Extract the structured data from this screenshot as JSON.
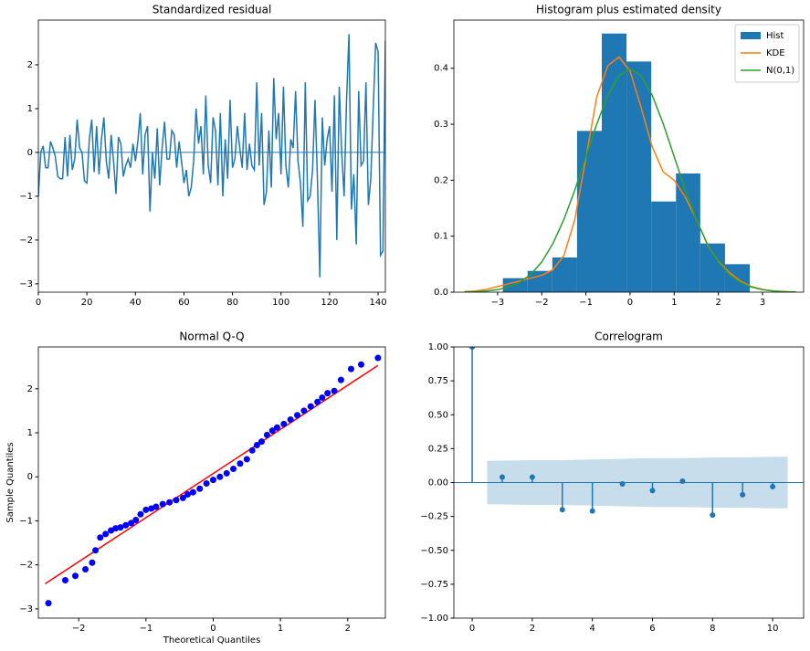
{
  "chart_data": [
    {
      "type": "line",
      "title": "Standardized residual",
      "color": "#1f77b4",
      "hline": 0,
      "values": [
        -1.0,
        0.0,
        0.15,
        -0.35,
        -0.35,
        0.25,
        0.1,
        -0.1,
        -0.55,
        -0.6,
        -0.6,
        0.35,
        -0.55,
        0.4,
        -0.4,
        -0.15,
        0.75,
        0.1,
        0.0,
        -0.65,
        -0.7,
        0.3,
        0.75,
        -0.45,
        0.6,
        -0.5,
        0.3,
        0.8,
        -0.2,
        -0.6,
        0.4,
        -0.2,
        -0.95,
        0.35,
        0.2,
        -0.55,
        -0.3,
        -0.15,
        -0.35,
        0.2,
        -0.2,
        0.25,
        0.9,
        -0.5,
        0.4,
        0.6,
        -1.35,
        0.0,
        -0.6,
        0.55,
        -0.75,
        0.1,
        0.7,
        -0.15,
        -0.15,
        0.5,
        0.4,
        -0.35,
        0.25,
        -0.2,
        -0.7,
        -0.4,
        -1.0,
        -0.8,
        -0.2,
        1.0,
        0.2,
        0.6,
        -0.5,
        1.3,
        -0.3,
        -0.7,
        0.8,
        0.5,
        -0.75,
        0.9,
        -1.0,
        0.3,
        -0.6,
        1.2,
        -0.35,
        -0.15,
        0.6,
        0.1,
        -0.35,
        0.9,
        -0.4,
        0.2,
        -0.3,
        -0.4,
        1.6,
        -0.3,
        0.9,
        -1.2,
        -0.9,
        0.5,
        -0.8,
        1.7,
        0.3,
        0.9,
        -0.5,
        1.5,
        -0.3,
        -0.8,
        0.3,
        0.1,
        1.4,
        -0.2,
        -0.7,
        -1.7,
        1.6,
        -1.1,
        -1.0,
        -0.4,
        1.2,
        -0.6,
        -2.85,
        0.8,
        -0.3,
        0.3,
        0.6,
        -0.9,
        1.3,
        -2.0,
        1.5,
        0.0,
        -1.0,
        1.2,
        2.7,
        -1.3,
        -0.5,
        -2.1,
        1.4,
        -0.3,
        -0.2,
        1.6,
        -1.2,
        -0.6,
        1.0,
        2.5,
        2.3,
        -2.35,
        -2.25,
        2.55
      ],
      "xlim": [
        0,
        143
      ],
      "xticks": [
        0,
        20,
        40,
        60,
        80,
        100,
        120,
        140
      ],
      "ylim": [
        -3.19,
        3.02
      ],
      "yticks": [
        {
          "value": -3,
          "label": "−3"
        },
        {
          "value": -2,
          "label": "−2"
        },
        {
          "value": -1,
          "label": "−1"
        },
        0,
        1,
        2
      ]
    },
    {
      "type": "histogram",
      "title": "Histogram plus estimated density",
      "legend": "upper right",
      "hist": {
        "name": "Hist",
        "color": "#1f77b4",
        "bins": [
          -2.88,
          -2.32,
          -1.76,
          -1.2,
          -0.64,
          -0.08,
          0.48,
          1.04,
          1.59,
          2.15,
          2.71
        ],
        "counts": [
          0.025,
          0.038,
          0.062,
          0.288,
          0.462,
          0.412,
          0.162,
          0.212,
          0.087,
          0.05
        ]
      },
      "series": [
        {
          "name": "KDE",
          "color": "#ff7f0e",
          "x": [
            -3.75,
            -3.5,
            -3.25,
            -3,
            -2.75,
            -2.5,
            -2.25,
            -2,
            -1.75,
            -1.5,
            -1.25,
            -1,
            -0.75,
            -0.5,
            -0.25,
            0,
            0.25,
            0.5,
            0.75,
            1,
            1.25,
            1.5,
            1.75,
            2,
            2.25,
            2.5,
            2.75,
            3,
            3.25,
            3.5,
            3.75
          ],
          "values": [
            0.001,
            0.002,
            0.005,
            0.01,
            0.015,
            0.02,
            0.025,
            0.03,
            0.04,
            0.065,
            0.13,
            0.24,
            0.35,
            0.405,
            0.42,
            0.395,
            0.33,
            0.26,
            0.215,
            0.2,
            0.17,
            0.13,
            0.085,
            0.055,
            0.035,
            0.02,
            0.01,
            0.005,
            0.002,
            0.001,
            0.0
          ]
        },
        {
          "name": "N(0,1)",
          "color": "#2ca02c",
          "x": [
            -3.75,
            -3.5,
            -3.25,
            -3,
            -2.75,
            -2.5,
            -2.25,
            -2,
            -1.75,
            -1.5,
            -1.25,
            -1,
            -0.75,
            -0.5,
            -0.25,
            0,
            0.25,
            0.5,
            0.75,
            1,
            1.25,
            1.5,
            1.75,
            2,
            2.25,
            2.5,
            2.75,
            3,
            3.25,
            3.5,
            3.75
          ],
          "values": [
            0.0004,
            0.0009,
            0.002,
            0.0044,
            0.0091,
            0.0175,
            0.0317,
            0.054,
            0.0863,
            0.1295,
            0.1826,
            0.242,
            0.3011,
            0.3521,
            0.3867,
            0.3989,
            0.3867,
            0.3521,
            0.3011,
            0.242,
            0.1826,
            0.1295,
            0.0863,
            0.054,
            0.0317,
            0.0175,
            0.0091,
            0.0044,
            0.002,
            0.0009,
            0.0004
          ]
        }
      ],
      "xlim": [
        -3.99,
        3.93
      ],
      "xticks": [
        {
          "value": -3,
          "label": "−3"
        },
        {
          "value": -2,
          "label": "−2"
        },
        {
          "value": -1,
          "label": "−1"
        },
        0,
        1,
        2,
        3
      ],
      "ylim": [
        0,
        0.486
      ],
      "yticks": [
        {
          "value": 0,
          "label": "0.0"
        },
        0.1,
        0.2,
        0.3,
        0.4
      ]
    },
    {
      "type": "scatter",
      "title": "Normal Q-Q",
      "x_label": "Theoretical Quantiles",
      "y_label": "Sample Quantiles",
      "color": "#0000ff",
      "x": [
        -2.45,
        -2.2,
        -2.05,
        -1.9,
        -1.8,
        -1.75,
        -1.68,
        -1.6,
        -1.52,
        -1.45,
        -1.38,
        -1.3,
        -1.22,
        -1.15,
        -1.08,
        -1.0,
        -0.92,
        -0.85,
        -0.75,
        -0.65,
        -0.55,
        -0.45,
        -0.38,
        -0.3,
        -0.2,
        -0.1,
        0,
        0.1,
        0.2,
        0.3,
        0.4,
        0.5,
        0.58,
        0.65,
        0.72,
        0.8,
        0.88,
        0.95,
        1.05,
        1.15,
        1.25,
        1.35,
        1.45,
        1.55,
        1.62,
        1.7,
        1.8,
        1.9,
        2.05,
        2.2,
        2.45
      ],
      "values": [
        -2.87,
        -2.35,
        -2.25,
        -2.1,
        -1.95,
        -1.67,
        -1.38,
        -1.3,
        -1.22,
        -1.17,
        -1.15,
        -1.1,
        -1.05,
        -0.98,
        -0.85,
        -0.75,
        -0.72,
        -0.68,
        -0.62,
        -0.58,
        -0.53,
        -0.48,
        -0.4,
        -0.35,
        -0.27,
        -0.15,
        -0.07,
        0.0,
        0.08,
        0.18,
        0.3,
        0.4,
        0.6,
        0.72,
        0.8,
        0.95,
        1.05,
        1.12,
        1.2,
        1.3,
        1.4,
        1.5,
        1.6,
        1.7,
        1.8,
        1.9,
        1.95,
        2.2,
        2.45,
        2.55,
        2.7
      ],
      "ref_line": {
        "color": "#ff0000",
        "x": [
          -2.5,
          2.45
        ],
        "y": [
          -2.43,
          2.53
        ]
      },
      "xlim": [
        -2.6,
        2.56
      ],
      "xticks": [
        {
          "value": -2,
          "label": "−2"
        },
        {
          "value": -1,
          "label": "−1"
        },
        0,
        1,
        2
      ],
      "ylim": [
        -3.21,
        2.95
      ],
      "yticks": [
        {
          "value": -3,
          "label": "−3"
        },
        {
          "value": -2,
          "label": "−2"
        },
        {
          "value": -1,
          "label": "−1"
        },
        0,
        1,
        2
      ]
    },
    {
      "type": "stem",
      "title": "Correlogram",
      "color": "#1f77b4",
      "hline": 0,
      "x": [
        0,
        1,
        2,
        3,
        4,
        5,
        6,
        7,
        8,
        9,
        10
      ],
      "values": [
        1.0,
        0.04,
        0.04,
        -0.2,
        -0.21,
        -0.01,
        -0.06,
        0.01,
        -0.24,
        -0.09,
        -0.03
      ],
      "confint_x": [
        1,
        2,
        3,
        4,
        5,
        6,
        7,
        8,
        9,
        10
      ],
      "confint_upper": [
        0.16,
        0.165,
        0.165,
        0.17,
        0.175,
        0.18,
        0.18,
        0.185,
        0.185,
        0.19
      ],
      "confint_lower": [
        -0.16,
        -0.165,
        -0.165,
        -0.17,
        -0.175,
        -0.18,
        -0.18,
        -0.185,
        -0.185,
        -0.19
      ],
      "xlim": [
        -0.61,
        11.03
      ],
      "xticks": [
        0,
        2,
        4,
        6,
        8,
        10
      ],
      "ylim": [
        -1,
        1
      ],
      "yticks": [
        {
          "value": -1,
          "label": "−1.00"
        },
        {
          "value": -0.75,
          "label": "−0.75"
        },
        {
          "value": -0.5,
          "label": "−0.50"
        },
        {
          "value": -0.25,
          "label": "−0.25"
        },
        {
          "value": 0,
          "label": "0.00"
        },
        {
          "value": 0.25,
          "label": "0.25"
        },
        {
          "value": 0.5,
          "label": "0.50"
        },
        {
          "value": 0.75,
          "label": "0.75"
        },
        {
          "value": 1,
          "label": "1.00"
        }
      ]
    }
  ]
}
